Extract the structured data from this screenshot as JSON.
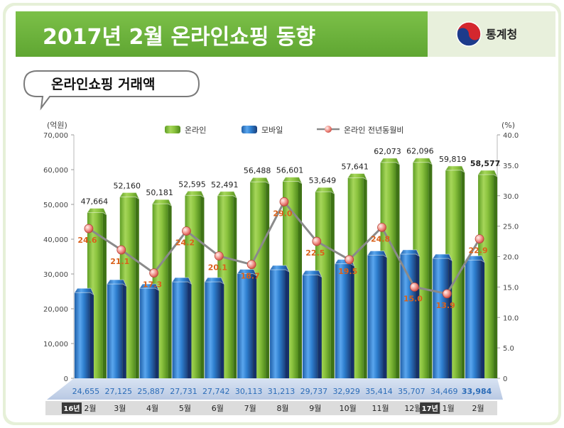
{
  "header": {
    "title": "2017년 2월 온라인쇼핑 동향",
    "logo_text": "통계청"
  },
  "section_label": "온라인쇼핑 거래액",
  "colors": {
    "online": "#8cc43f",
    "mobile": "#2e7fcf",
    "ratio_line": "#8a8a8a",
    "ratio_marker": "#e8736a",
    "ratio_label": "#d9611b",
    "mobile_label": "#2b6cb8",
    "header_green": "#6fb53b"
  },
  "chart_data": {
    "type": "bar",
    "left_unit": "(억원)",
    "right_unit": "(%)",
    "categories": [
      "2월",
      "3월",
      "4월",
      "5월",
      "6월",
      "7월",
      "8월",
      "9월",
      "10월",
      "11월",
      "12월",
      "1월",
      "2월"
    ],
    "year_markers": [
      {
        "index": 0,
        "text": "16년"
      },
      {
        "index": 11,
        "text": "17년"
      }
    ],
    "y_left_ticks": [
      "0",
      "10,000",
      "20,000",
      "30,000",
      "40,000",
      "50,000",
      "60,000",
      "70,000"
    ],
    "y_right_ticks": [
      "0",
      "5.0",
      "10.0",
      "15.0",
      "20.0",
      "25.0",
      "30.0",
      "35.0",
      "40.0"
    ],
    "ylim_left": [
      0,
      70000
    ],
    "ylim_right": [
      0,
      40
    ],
    "legend": [
      "온라인",
      "모바일",
      "온라인 전년동월비"
    ],
    "series": [
      {
        "name": "온라인",
        "values": [
          47664,
          52160,
          50181,
          52595,
          52491,
          56488,
          56601,
          53649,
          57641,
          62073,
          62096,
          59819,
          58577
        ],
        "labels": [
          "47,664",
          "52,160",
          "50,181",
          "52,595",
          "52,491",
          "56,488",
          "56,601",
          "53,649",
          "57,641",
          "62,073",
          "62,096",
          "59,819",
          "58,577"
        ]
      },
      {
        "name": "모바일",
        "values": [
          24655,
          27125,
          25887,
          27731,
          27742,
          30113,
          31213,
          29737,
          32929,
          35414,
          35707,
          34469,
          33984
        ],
        "labels": [
          "24,655",
          "27,125",
          "25,887",
          "27,731",
          "27,742",
          "30,113",
          "31,213",
          "29,737",
          "32,929",
          "35,414",
          "35,707",
          "34,469",
          "33,984"
        ]
      },
      {
        "name": "온라인 전년동월비",
        "values": [
          24.6,
          21.1,
          17.3,
          24.2,
          20.1,
          18.7,
          29.0,
          22.5,
          19.5,
          24.8,
          15.0,
          13.9,
          22.9
        ],
        "labels": [
          "24.6",
          "21.1",
          "17.3",
          "24.2",
          "20.1",
          "18.7",
          "29.0",
          "22.5",
          "19.5",
          "24.8",
          "15.0",
          "13.9",
          "22.9"
        ]
      }
    ]
  }
}
